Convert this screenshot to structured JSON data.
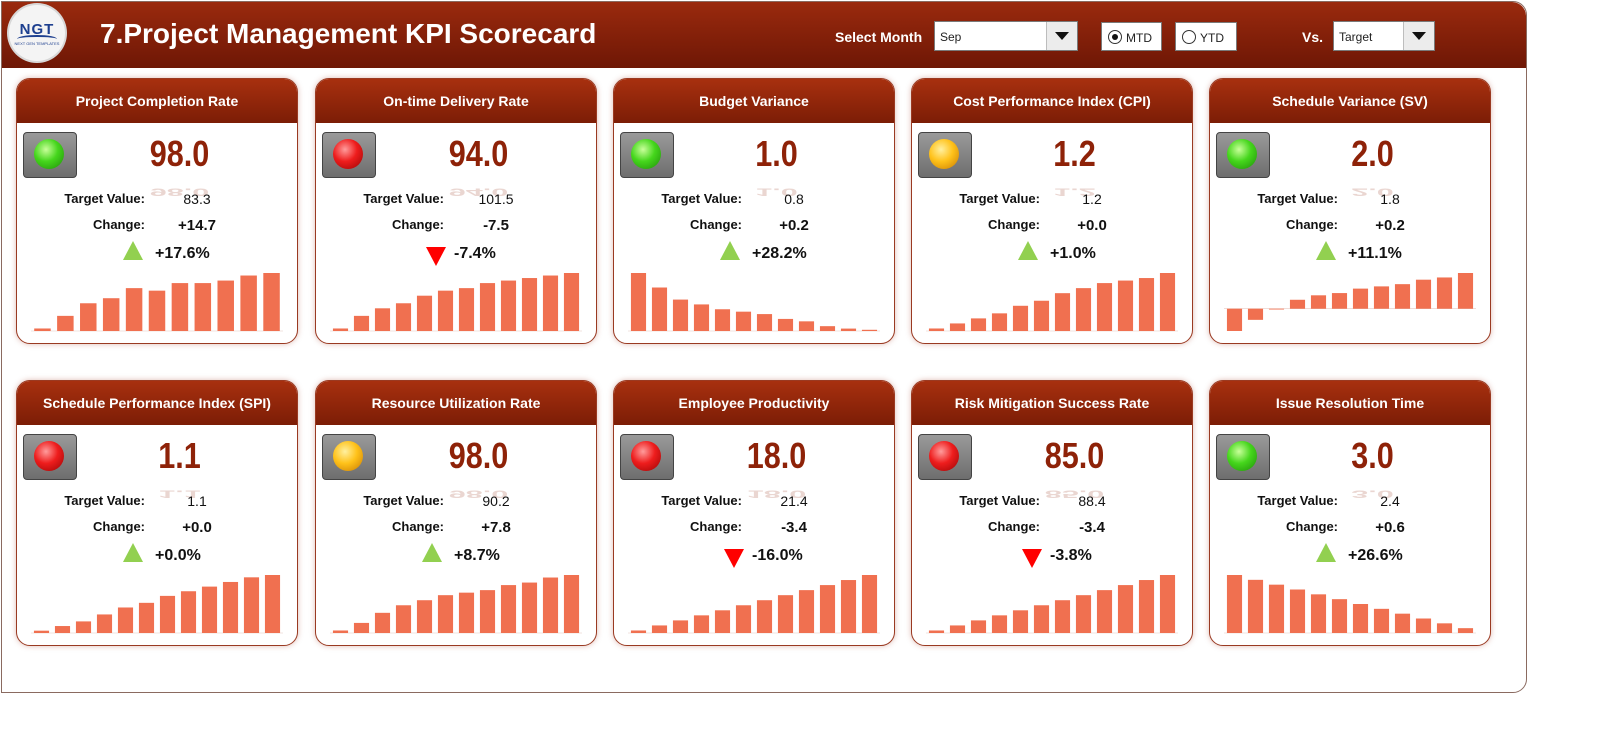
{
  "header": {
    "logo_text": "NGT",
    "logo_sub": "NEXT GEN TEMPLATES",
    "title": "7.Project Management KPI Scorecard",
    "select_month_label": "Select Month",
    "month_value": "Sep",
    "option_mtd": "MTD",
    "option_ytd": "YTD",
    "selected_option": "MTD",
    "vs_label": "Vs.",
    "vs_value": "Target"
  },
  "labels": {
    "target": "Target Value:",
    "change": "Change:"
  },
  "colors": {
    "header": "#8a230a",
    "bar": "#f07050",
    "up": "#92d050",
    "down": "#ff0000",
    "value": "#8e2208"
  },
  "cards": [
    {
      "title": "Project Completion Rate",
      "status": "green",
      "value": "98.0",
      "target": "83.3",
      "change": "+14.7",
      "direction": "up",
      "pct": "+17.6%",
      "trend": [
        1,
        6,
        11,
        13,
        17,
        16,
        19,
        19,
        20,
        22,
        23
      ]
    },
    {
      "title": "On-time Delivery Rate",
      "status": "red",
      "value": "94.0",
      "target": "101.5",
      "change": "-7.5",
      "direction": "down",
      "pct": "-7.4%",
      "trend": [
        1,
        6,
        9,
        11,
        14,
        16,
        17,
        19,
        20,
        21,
        22,
        23
      ]
    },
    {
      "title": "Budget Variance",
      "status": "green",
      "value": "1.0",
      "target": "0.8",
      "change": "+0.2",
      "direction": "up",
      "pct": "+28.2%",
      "trend": [
        24,
        18,
        13,
        11,
        9,
        8,
        7,
        5,
        4,
        2,
        1,
        0.5
      ]
    },
    {
      "title": "Cost Performance Index (CPI)",
      "status": "amber",
      "value": "1.2",
      "target": "1.2",
      "change": "+0.0",
      "direction": "up",
      "pct": "+1.0%",
      "trend": [
        1,
        3,
        5,
        7,
        10,
        12,
        15,
        17,
        19,
        20,
        21,
        23
      ]
    },
    {
      "title": "Schedule Variance (SV)",
      "status": "green",
      "value": "2.0",
      "target": "1.8",
      "change": "+0.2",
      "direction": "up",
      "pct": "+11.1%",
      "trend": [
        -10,
        -5,
        0,
        4,
        6,
        7,
        9,
        10,
        11,
        13,
        14,
        16
      ]
    },
    {
      "title": "Schedule Performance Index (SPI)",
      "status": "red",
      "value": "1.1",
      "target": "1.1",
      "change": "+0.0",
      "direction": "up",
      "pct": "+0.0%",
      "trend": [
        1,
        3,
        5,
        8,
        11,
        13,
        16,
        18,
        20,
        22,
        24,
        25
      ]
    },
    {
      "title": "Resource Utilization Rate",
      "status": "amber",
      "value": "98.0",
      "target": "90.2",
      "change": "+7.8",
      "direction": "up",
      "pct": "+8.7%",
      "trend": [
        1,
        4,
        8,
        11,
        13,
        15,
        16,
        17,
        19,
        20,
        22,
        23
      ]
    },
    {
      "title": "Employee Productivity",
      "status": "red",
      "value": "18.0",
      "target": "21.4",
      "change": "-3.4",
      "direction": "down",
      "pct": "-16.0%",
      "trend": [
        1,
        3,
        5,
        7,
        9,
        11,
        13,
        15,
        17,
        19,
        21,
        23
      ]
    },
    {
      "title": "Risk Mitigation Success Rate",
      "status": "red",
      "value": "85.0",
      "target": "88.4",
      "change": "-3.4",
      "direction": "down",
      "pct": "-3.8%",
      "trend": [
        1,
        3,
        5,
        7,
        9,
        11,
        13,
        15,
        17,
        19,
        21,
        23
      ]
    },
    {
      "title": "Issue Resolution Time",
      "status": "green",
      "value": "3.0",
      "target": "2.4",
      "change": "+0.6",
      "direction": "up",
      "pct": "+26.6%",
      "trend": [
        24,
        22,
        20,
        18,
        16,
        14,
        12,
        10,
        8,
        6,
        4,
        2
      ]
    }
  ]
}
